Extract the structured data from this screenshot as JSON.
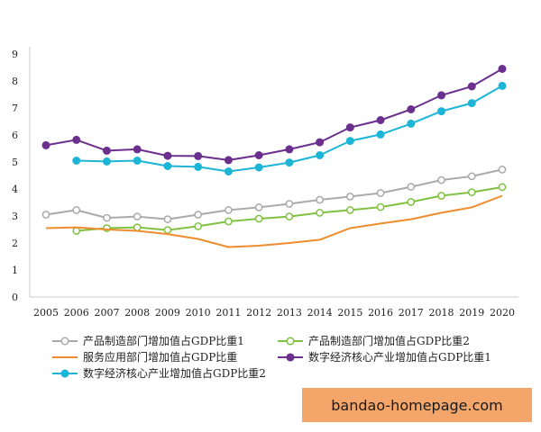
{
  "chart_data": {
    "type": "line",
    "x": [
      2005,
      2006,
      2007,
      2008,
      2009,
      2010,
      2011,
      2012,
      2013,
      2014,
      2015,
      2016,
      2017,
      2018,
      2019,
      2020
    ],
    "ylim": [
      0,
      9
    ],
    "yticks": [
      0,
      1,
      2,
      3,
      4,
      5,
      6,
      7,
      8,
      9
    ],
    "grid": false,
    "legend_position": "bottom",
    "series": [
      {
        "name": "产品制造部门增加值占GDP比重1",
        "color": "#aaaaaa",
        "marker": "open-circle",
        "x": [
          2005,
          2006,
          2007,
          2008,
          2009,
          2010,
          2011,
          2012,
          2013,
          2014,
          2015,
          2016,
          2017,
          2018,
          2019,
          2020
        ],
        "values": [
          3.05,
          3.22,
          2.93,
          2.98,
          2.88,
          3.05,
          3.22,
          3.32,
          3.45,
          3.6,
          3.72,
          3.85,
          4.08,
          4.33,
          4.47,
          4.72
        ]
      },
      {
        "name": "产品制造部门增加值占GDP比重2",
        "color": "#7fc241",
        "marker": "open-circle",
        "x": [
          2006,
          2007,
          2008,
          2009,
          2010,
          2011,
          2012,
          2013,
          2014,
          2015,
          2016,
          2017,
          2018,
          2019,
          2020
        ],
        "values": [
          2.45,
          2.55,
          2.58,
          2.48,
          2.62,
          2.8,
          2.9,
          2.98,
          3.12,
          3.22,
          3.33,
          3.52,
          3.75,
          3.88,
          4.07
        ]
      },
      {
        "name": "服务应用部门增加值占GDP比重",
        "color": "#ee8c2e",
        "marker": "none",
        "x": [
          2005,
          2006,
          2007,
          2008,
          2009,
          2010,
          2011,
          2012,
          2013,
          2014,
          2015,
          2016,
          2017,
          2018,
          2019,
          2020
        ],
        "values": [
          2.55,
          2.58,
          2.5,
          2.45,
          2.33,
          2.15,
          1.85,
          1.9,
          2.0,
          2.12,
          2.55,
          2.72,
          2.88,
          3.12,
          3.32,
          3.75
        ]
      },
      {
        "name": "数字经济核心产业增加值占GDP比重1",
        "color": "#6b2f8e",
        "marker": "filled-circle",
        "x": [
          2005,
          2006,
          2007,
          2008,
          2009,
          2010,
          2011,
          2012,
          2013,
          2014,
          2015,
          2016,
          2017,
          2018,
          2019,
          2020
        ],
        "values": [
          5.62,
          5.82,
          5.42,
          5.47,
          5.23,
          5.22,
          5.07,
          5.25,
          5.47,
          5.73,
          6.28,
          6.55,
          6.95,
          7.47,
          7.8,
          8.45
        ]
      },
      {
        "name": "数字经济核心产业增加值占GDP比重2",
        "color": "#1cb5d8",
        "marker": "filled-circle",
        "x": [
          2006,
          2007,
          2008,
          2009,
          2010,
          2011,
          2012,
          2013,
          2014,
          2015,
          2016,
          2017,
          2018,
          2019,
          2020
        ],
        "values": [
          5.05,
          5.02,
          5.05,
          4.85,
          4.82,
          4.65,
          4.8,
          4.98,
          5.25,
          5.78,
          6.02,
          6.42,
          6.88,
          7.18,
          7.82
        ]
      }
    ]
  },
  "watermark": {
    "text": "bandao-homepage.com"
  }
}
